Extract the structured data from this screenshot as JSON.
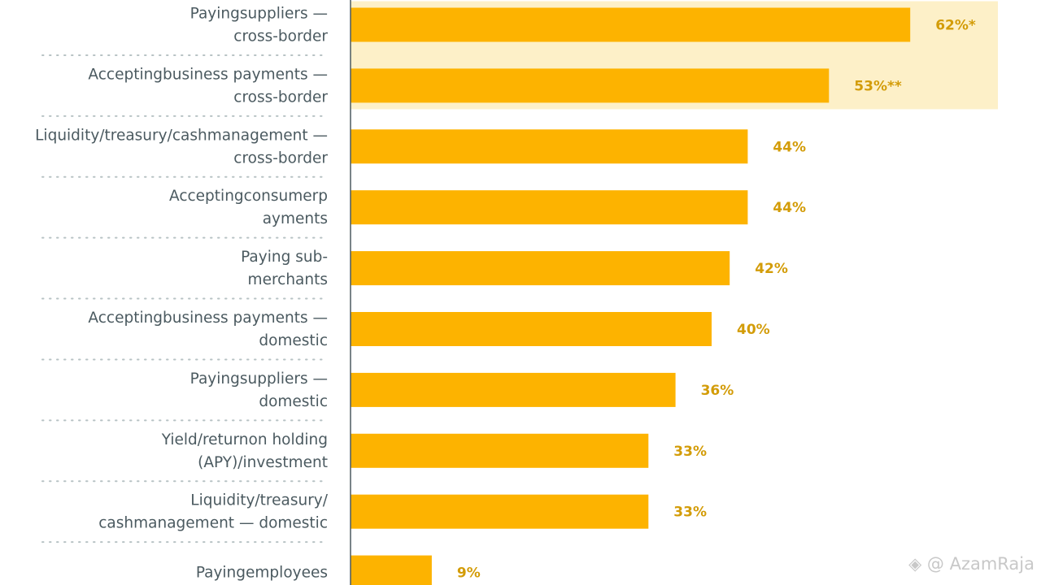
{
  "chart_data": {
    "type": "bar",
    "orientation": "horizontal",
    "categories": [
      [
        "Payingsuppliers —",
        "cross-border"
      ],
      [
        "Acceptingbusiness payments —",
        "cross-border"
      ],
      [
        "Liquidity/treasury/cashmanagement —",
        "cross-border"
      ],
      [
        "Acceptingconsumerp",
        "ayments"
      ],
      [
        "Paying sub-",
        "merchants"
      ],
      [
        "Acceptingbusiness payments —",
        "domestic"
      ],
      [
        "Payingsuppliers —",
        "domestic"
      ],
      [
        "Yield/returnon holding",
        "(APY)/investment"
      ],
      [
        "Liquidity/treasury/",
        "cashmanagement — domestic"
      ],
      [
        "Payingemployees"
      ]
    ],
    "values": [
      62,
      53,
      44,
      44,
      42,
      40,
      36,
      33,
      33,
      9
    ],
    "data_labels": [
      "62%*",
      "53%**",
      "44%",
      "44%",
      "42%",
      "40%",
      "36%",
      "33%",
      "33%",
      "9%"
    ],
    "highlighted": [
      0,
      1
    ],
    "xlim": [
      0,
      70
    ],
    "grid": false,
    "colors": {
      "bar": "#fdb300",
      "highlight_band": "#fdf0c8",
      "value_label": "#d39c08",
      "category_label": "#4b5a60",
      "separator": "#b7c2c4",
      "axis": "#4b5a60"
    }
  },
  "watermark": "@ AzamRaja"
}
